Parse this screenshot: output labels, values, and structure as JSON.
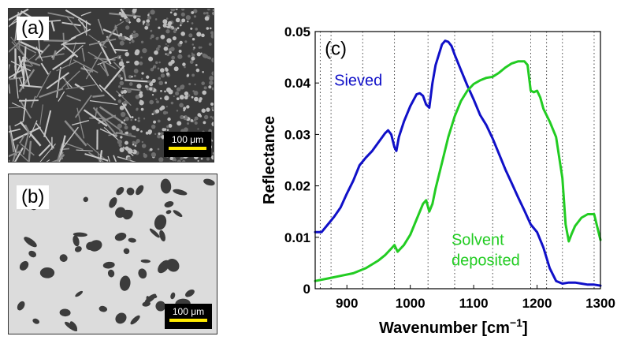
{
  "panel_a": {
    "label": "(a)",
    "scale": "100 μm"
  },
  "panel_b": {
    "label": "(b)",
    "scale": "100 μm"
  },
  "chart_data": {
    "type": "line",
    "panel_label": "(c)",
    "xlabel": "Wavenumber [cm",
    "xlabel_sup": "−1",
    "xlabel_end": "]",
    "ylabel": "Reflectance",
    "xlim": [
      850,
      1300
    ],
    "ylim": [
      0,
      0.05
    ],
    "x_ticks": [
      900,
      1000,
      1100,
      1200,
      1300
    ],
    "y_ticks": [
      0,
      0.01,
      0.02,
      0.03,
      0.04,
      0.05
    ],
    "y_tick_labels": [
      "0",
      "0.01",
      "0.02",
      "0.03",
      "0.04",
      "0.05"
    ],
    "vertical_dotted_lines": [
      858,
      875,
      925,
      975,
      1028,
      1070,
      1130,
      1190,
      1215,
      1240,
      1290
    ],
    "series": [
      {
        "name": "Sieved",
        "color": "#1010c8",
        "label_x": 880,
        "label_y": 0.0395,
        "x": [
          850,
          860,
          870,
          880,
          890,
          900,
          910,
          920,
          930,
          940,
          950,
          960,
          965,
          970,
          975,
          978,
          982,
          990,
          1000,
          1010,
          1015,
          1020,
          1025,
          1030,
          1035,
          1040,
          1050,
          1055,
          1060,
          1065,
          1070,
          1080,
          1090,
          1100,
          1110,
          1120,
          1130,
          1140,
          1150,
          1160,
          1170,
          1180,
          1190,
          1200,
          1210,
          1220,
          1230,
          1240,
          1250,
          1260,
          1270,
          1280,
          1290,
          1300
        ],
        "y": [
          0.011,
          0.011,
          0.0125,
          0.014,
          0.0158,
          0.0185,
          0.021,
          0.024,
          0.0255,
          0.0268,
          0.0285,
          0.0302,
          0.0308,
          0.03,
          0.0275,
          0.0268,
          0.0295,
          0.0325,
          0.0355,
          0.0378,
          0.038,
          0.0375,
          0.0358,
          0.0352,
          0.04,
          0.0435,
          0.0475,
          0.0482,
          0.048,
          0.0472,
          0.0455,
          0.0425,
          0.0395,
          0.0368,
          0.0338,
          0.0318,
          0.0292,
          0.0262,
          0.0232,
          0.0205,
          0.0178,
          0.0152,
          0.0125,
          0.011,
          0.008,
          0.004,
          0.0015,
          0.001,
          0.0012,
          0.0012,
          0.001,
          0.0008,
          0.0008,
          0.0006
        ]
      },
      {
        "name": "Solvent deposited",
        "color": "#22cc22",
        "label_x": 1065,
        "label_y": 0.0085,
        "x": [
          850,
          870,
          890,
          910,
          930,
          950,
          960,
          970,
          975,
          980,
          990,
          1000,
          1010,
          1020,
          1025,
          1030,
          1035,
          1040,
          1050,
          1060,
          1070,
          1080,
          1090,
          1100,
          1110,
          1120,
          1130,
          1140,
          1150,
          1160,
          1170,
          1180,
          1185,
          1190,
          1195,
          1200,
          1205,
          1210,
          1220,
          1230,
          1240,
          1245,
          1250,
          1255,
          1260,
          1270,
          1280,
          1290,
          1300
        ],
        "y": [
          0.0015,
          0.002,
          0.0025,
          0.003,
          0.004,
          0.0055,
          0.0065,
          0.0078,
          0.0085,
          0.0072,
          0.0085,
          0.0105,
          0.0135,
          0.0165,
          0.0172,
          0.015,
          0.0165,
          0.0195,
          0.0245,
          0.0295,
          0.0335,
          0.0365,
          0.0385,
          0.0398,
          0.0405,
          0.041,
          0.0412,
          0.042,
          0.043,
          0.0438,
          0.0442,
          0.0442,
          0.0435,
          0.0385,
          0.0382,
          0.0385,
          0.0372,
          0.035,
          0.0325,
          0.0295,
          0.0215,
          0.0125,
          0.0092,
          0.0108,
          0.0122,
          0.0138,
          0.0145,
          0.0145,
          0.0095
        ]
      }
    ]
  }
}
